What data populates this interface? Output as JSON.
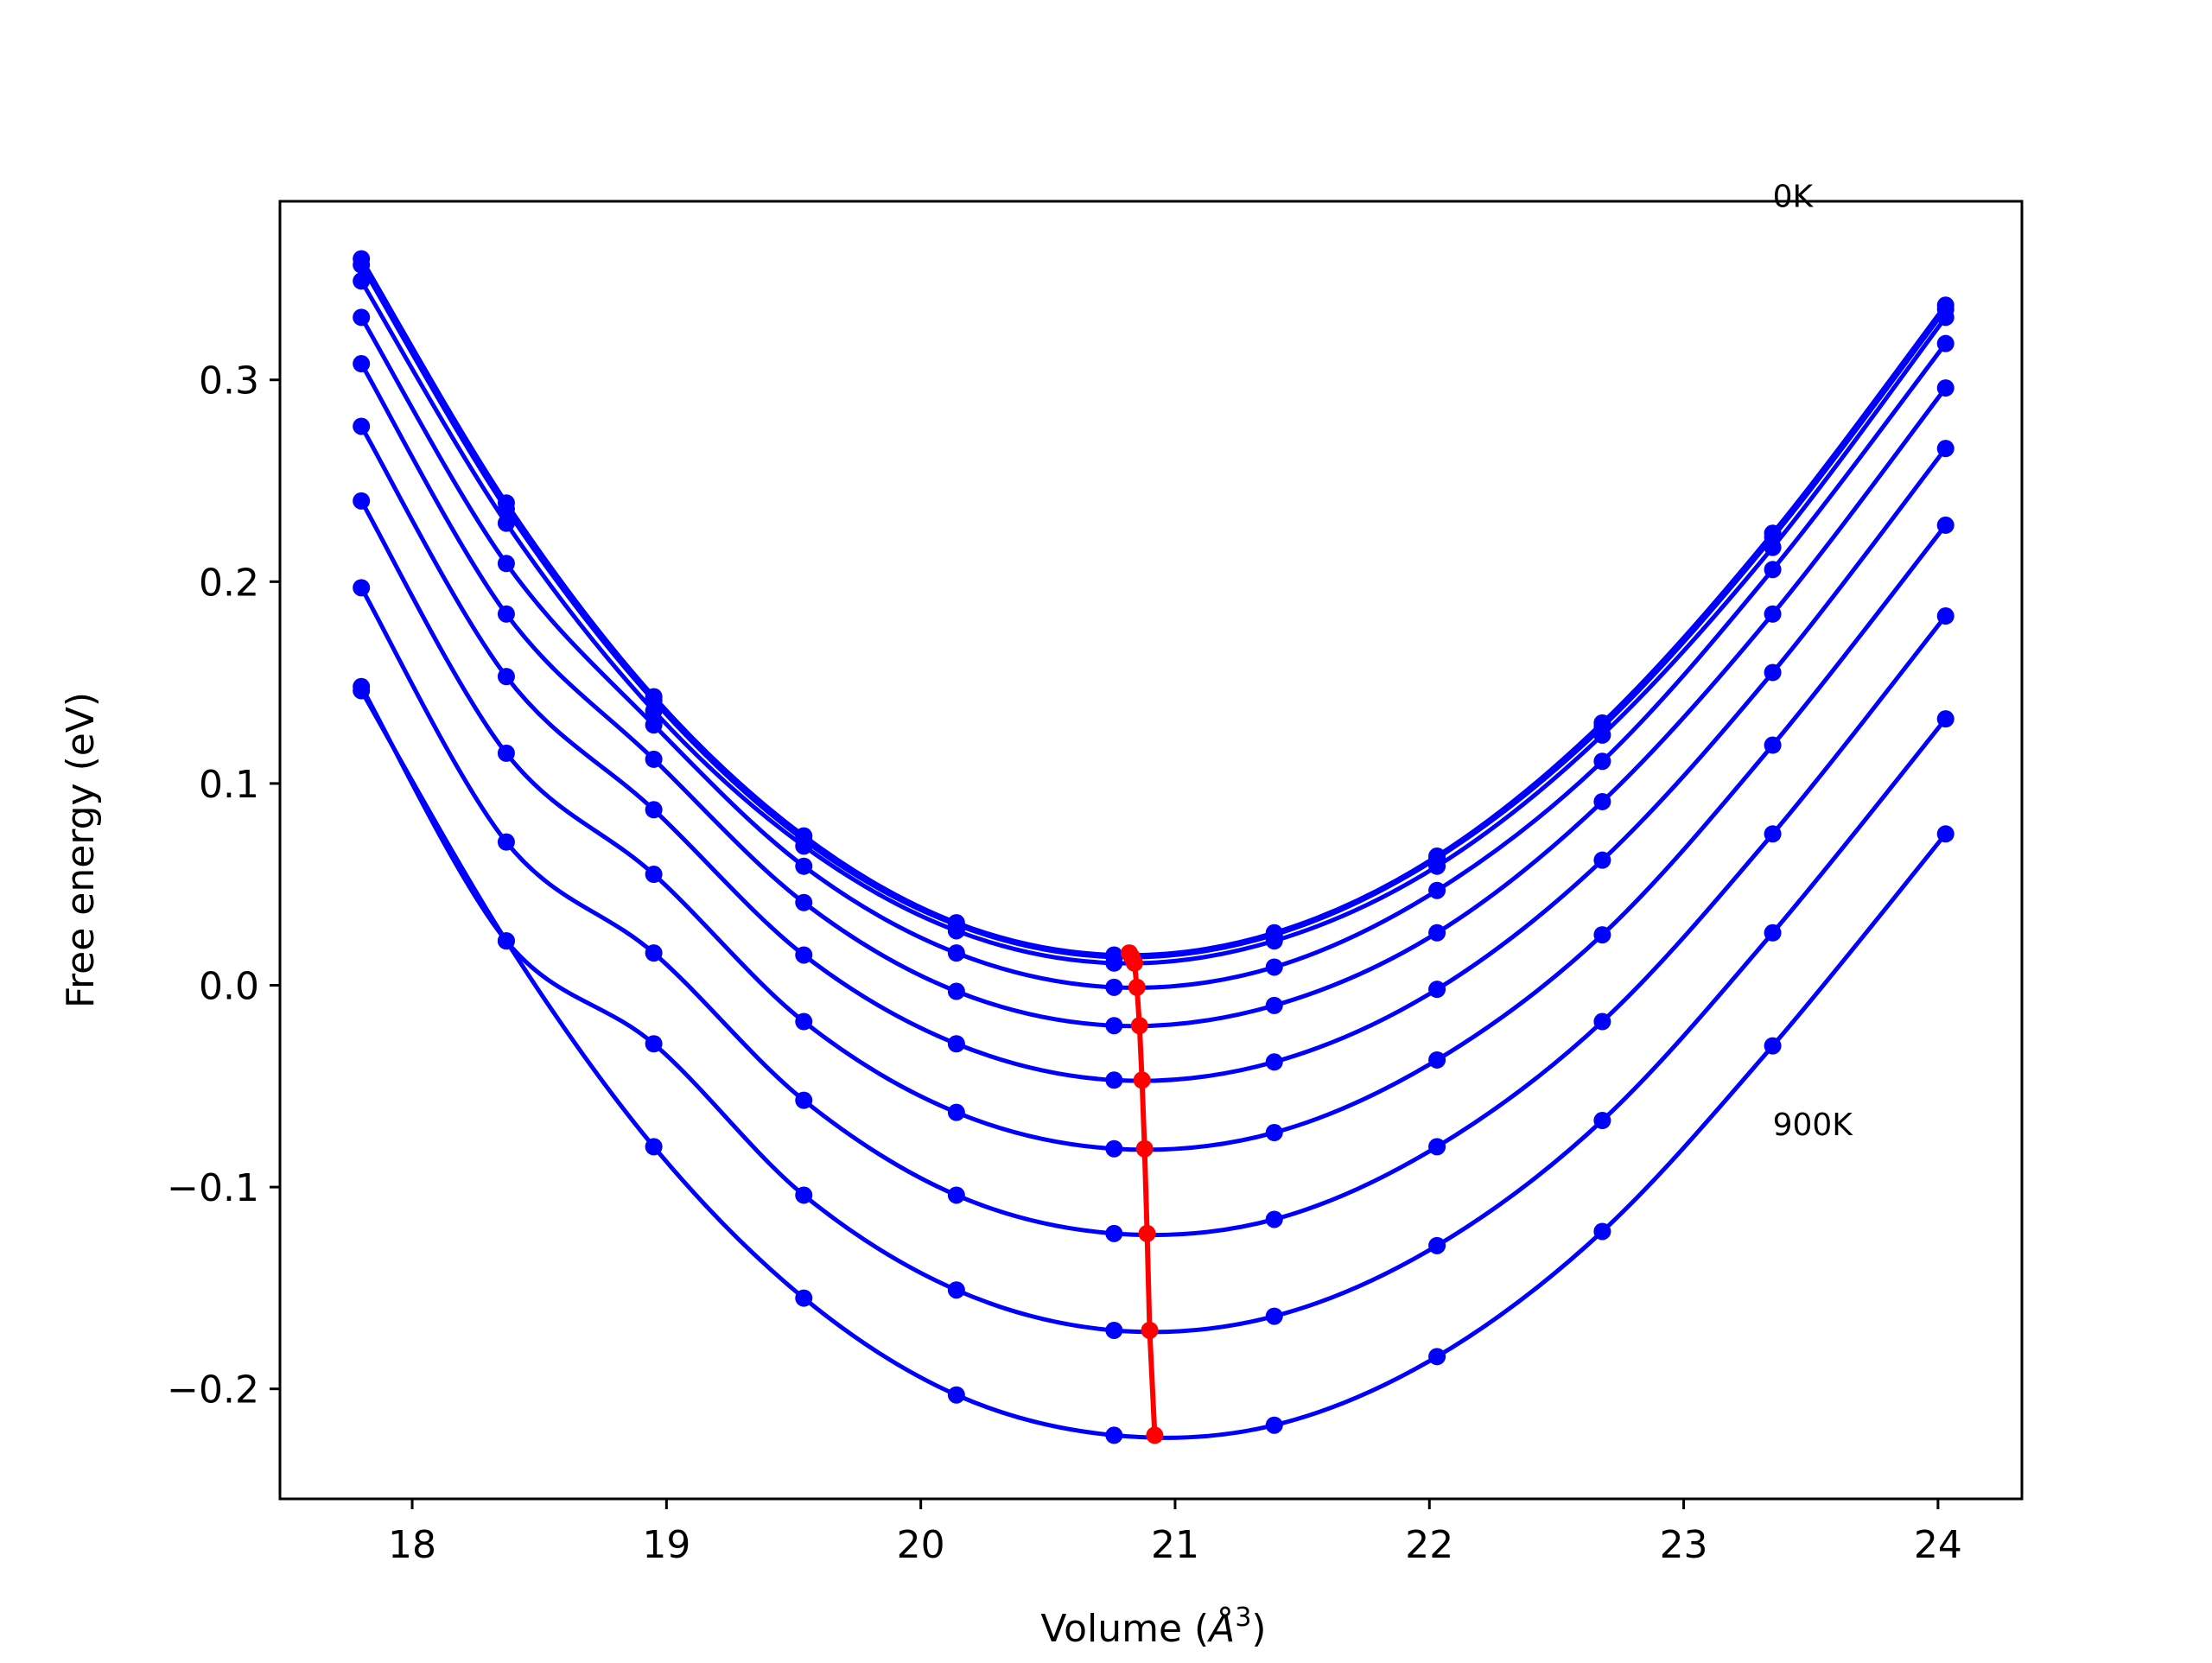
{
  "chart_data": {
    "type": "line",
    "title": "",
    "xlabel": "Volume (",
    "xlabel_unit": "Å",
    "xlabel_sup": "3",
    "xlabel_close": ")",
    "ylabel": "Free energy (eV)",
    "xlim": [
      17.48,
      24.33
    ],
    "ylim": [
      -0.2545,
      0.3885
    ],
    "xticks": [
      18,
      19,
      20,
      21,
      22,
      23,
      24
    ],
    "xtick_labels": [
      "18",
      "19",
      "20",
      "21",
      "22",
      "23",
      "24"
    ],
    "yticks": [
      -0.2,
      -0.1,
      0.0,
      0.1,
      0.2,
      0.3
    ],
    "ytick_labels": [
      "−0.2",
      "−0.1",
      "0.0",
      "0.1",
      "0.2",
      "0.3"
    ],
    "grid": false,
    "legend": "none",
    "annotations": [
      {
        "text": "0K",
        "x": 23.35,
        "y": 0.39
      },
      {
        "text": "900K",
        "x": 23.35,
        "y": -0.07
      }
    ],
    "curve_color": "#0000ff",
    "minima_color": "#ff0000",
    "x": [
      17.8,
      18.37,
      18.95,
      19.54,
      20.14,
      20.76,
      21.39,
      22.03,
      22.68,
      23.35,
      24.03
    ],
    "series": [
      {
        "values": [
          0.36,
          0.239,
          0.143,
          0.074,
          0.031,
          0.015,
          0.026,
          0.064,
          0.13,
          0.224,
          0.337
        ]
      },
      {
        "values": [
          0.357,
          0.236,
          0.141,
          0.072,
          0.03,
          0.014,
          0.025,
          0.063,
          0.128,
          0.222,
          0.335
        ]
      },
      {
        "values": [
          0.349,
          0.229,
          0.136,
          0.069,
          0.027,
          0.011,
          0.022,
          0.059,
          0.124,
          0.217,
          0.331
        ]
      },
      {
        "values": [
          0.331,
          0.209,
          0.129,
          0.059,
          0.016,
          -0.001,
          0.009,
          0.047,
          0.111,
          0.206,
          0.318
        ]
      },
      {
        "values": [
          0.308,
          0.184,
          0.112,
          0.041,
          -0.003,
          -0.02,
          -0.01,
          0.026,
          0.091,
          0.184,
          0.296
        ]
      },
      {
        "values": [
          0.277,
          0.153,
          0.087,
          0.015,
          -0.029,
          -0.047,
          -0.038,
          -0.002,
          0.062,
          0.155,
          0.266
        ]
      },
      {
        "values": [
          0.24,
          0.115,
          0.055,
          -0.018,
          -0.063,
          -0.081,
          -0.073,
          -0.037,
          0.025,
          0.119,
          0.228
        ]
      },
      {
        "values": [
          0.197,
          0.071,
          0.016,
          -0.057,
          -0.104,
          -0.123,
          -0.116,
          -0.08,
          -0.018,
          0.075,
          0.183
        ]
      },
      {
        "values": [
          0.148,
          0.022,
          -0.029,
          -0.104,
          -0.151,
          -0.171,
          -0.164,
          -0.129,
          -0.067,
          0.026,
          0.132
        ]
      },
      {
        "values": [
          0.146,
          0.022,
          -0.08,
          -0.155,
          -0.203,
          -0.223,
          -0.218,
          -0.184,
          -0.122,
          -0.03,
          0.075
        ]
      }
    ],
    "minima": {
      "x": [
        20.82,
        20.83,
        20.84,
        20.85,
        20.86,
        20.87,
        20.88,
        20.89,
        20.9,
        20.92
      ],
      "y": [
        0.016,
        0.014,
        0.011,
        -0.001,
        -0.02,
        -0.047,
        -0.081,
        -0.123,
        -0.171,
        -0.223
      ]
    }
  }
}
